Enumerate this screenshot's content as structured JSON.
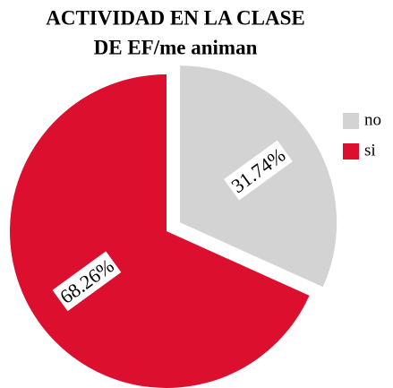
{
  "chart_data": {
    "type": "pie",
    "title": [
      "ACTIVIDAD EN LA CLASE",
      "DE EF/me animan"
    ],
    "categories": [
      "no",
      "si"
    ],
    "values": [
      31.74,
      68.26
    ],
    "value_labels": [
      "31.74%",
      "68.26%"
    ],
    "colors": [
      "#d3d3d3",
      "#dc0f2e"
    ],
    "exploded": [
      true,
      false
    ],
    "legend": "upper right"
  }
}
